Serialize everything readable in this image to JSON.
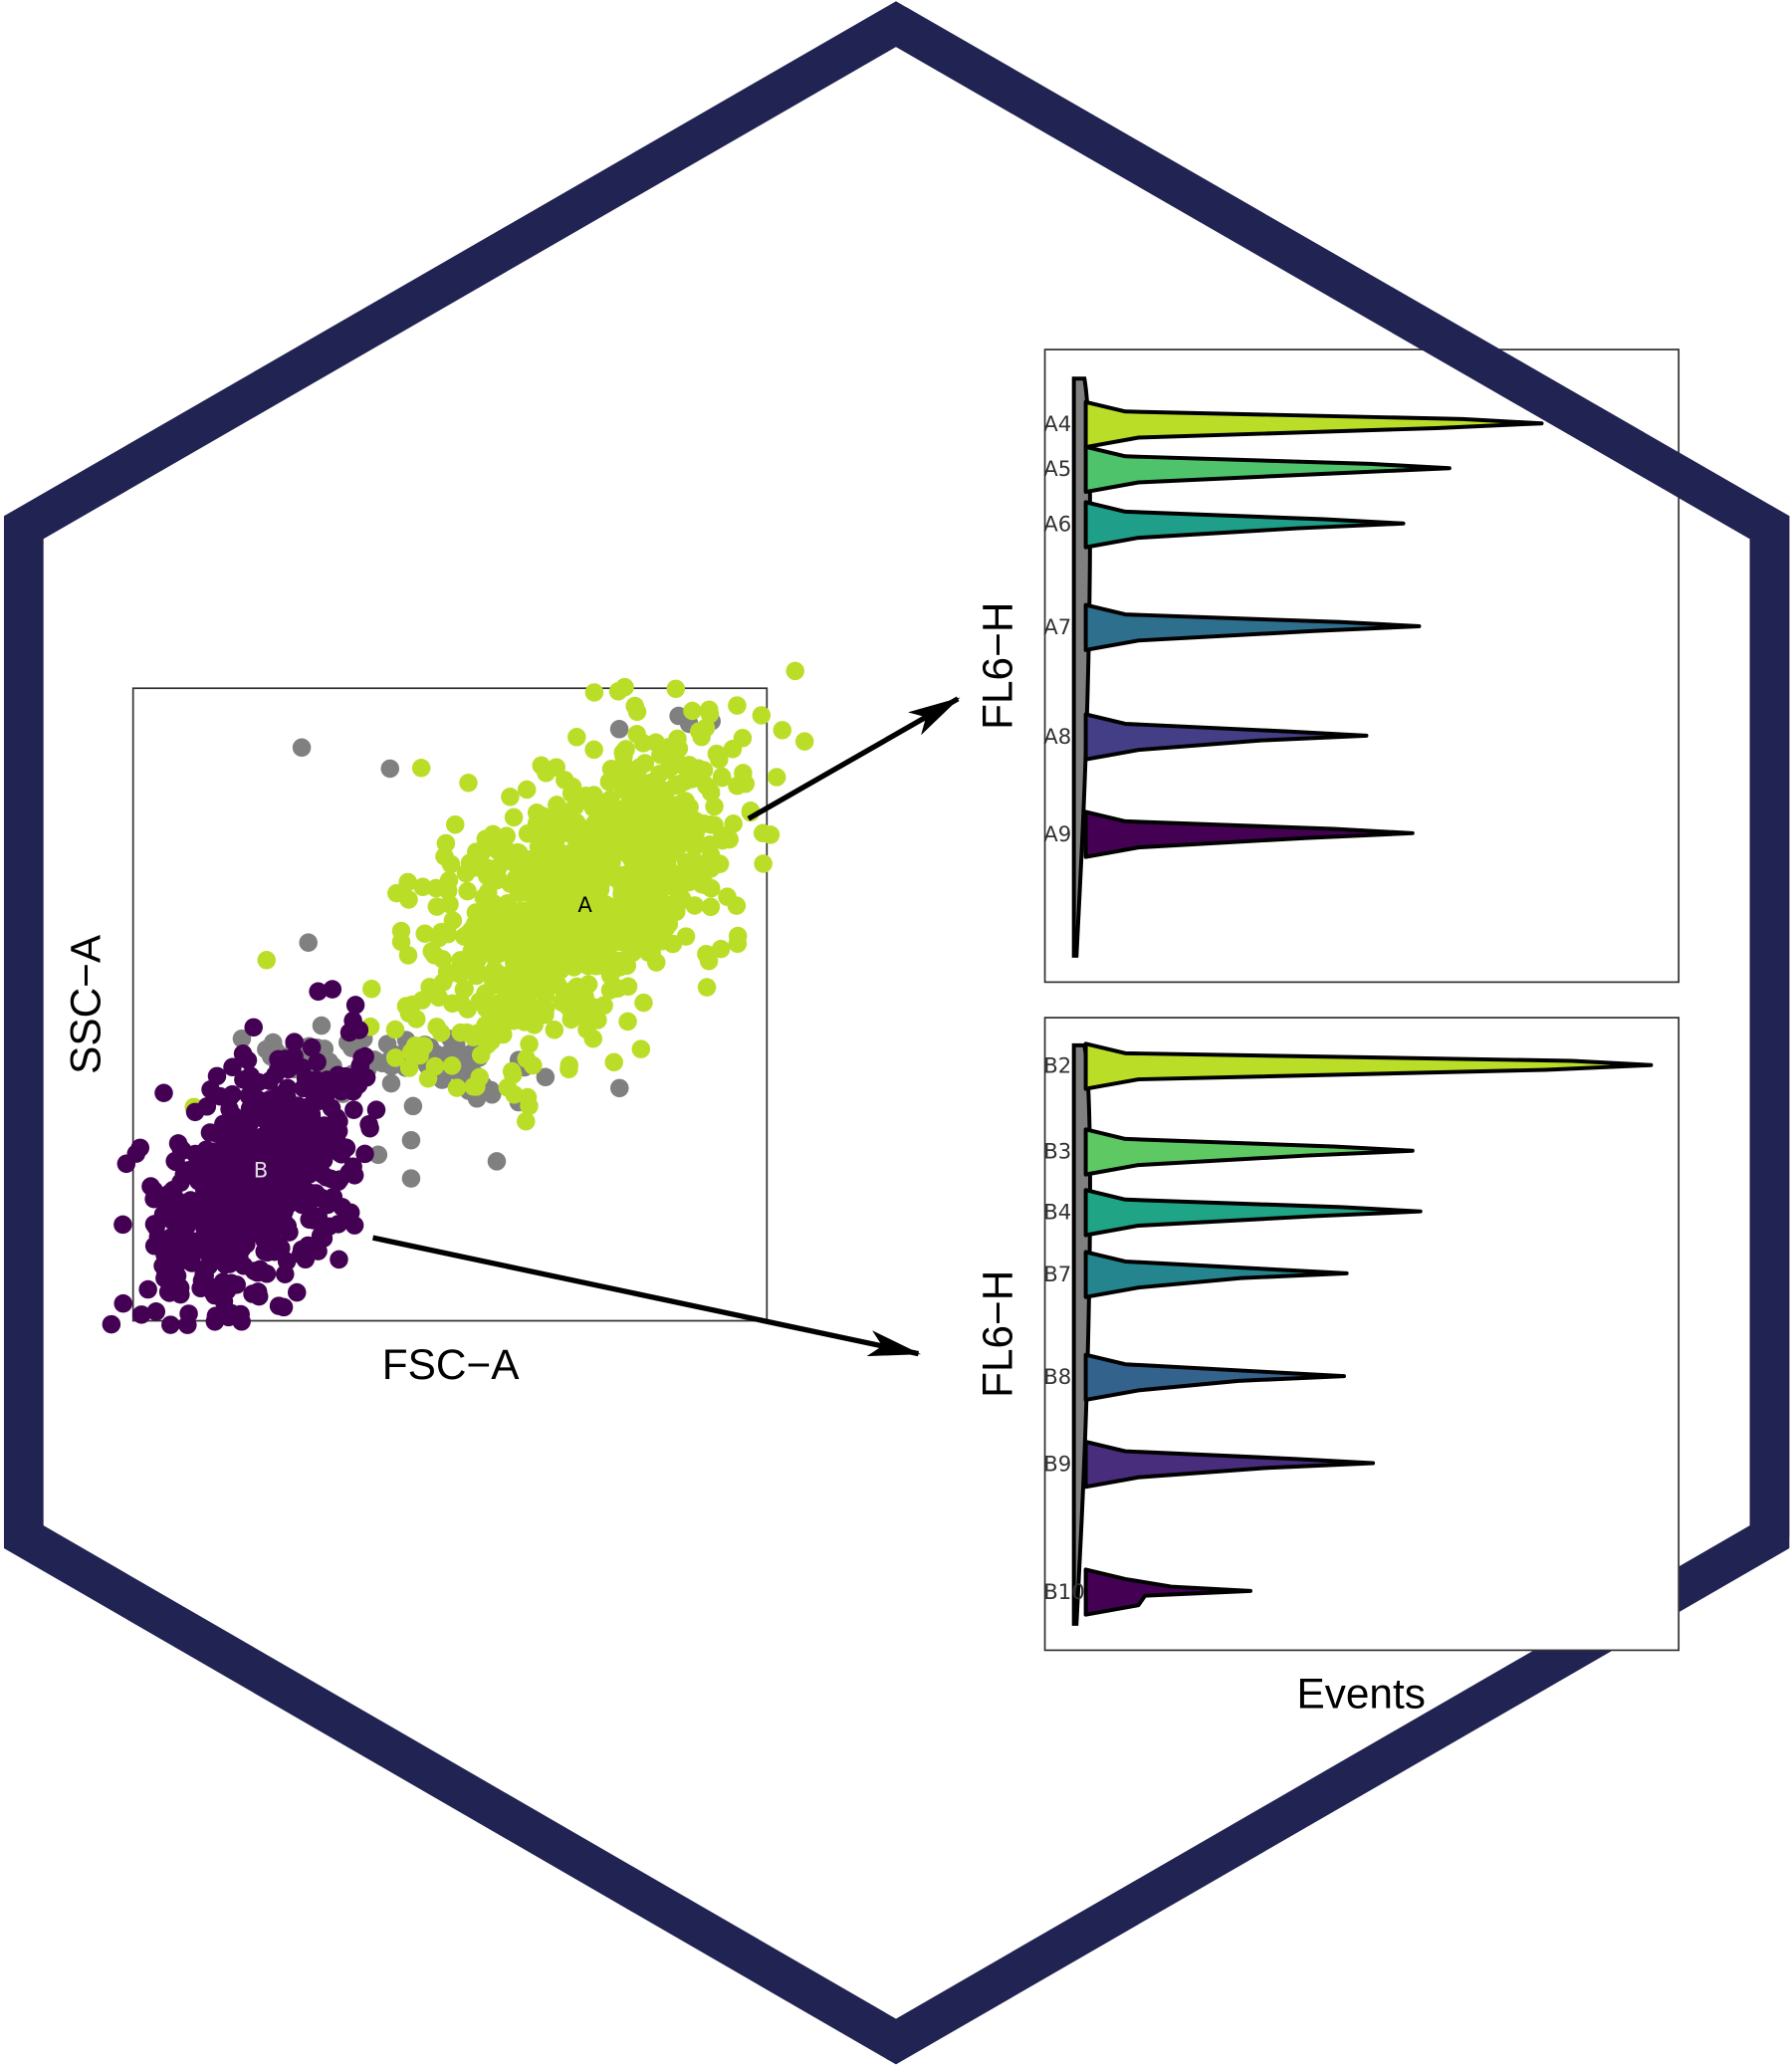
{
  "hex_color": "#212353",
  "scatter": {
    "xlabel": "FSC−A",
    "ylabel": "SSC−A",
    "gates": [
      {
        "label": "A",
        "color": "#bade28",
        "label_color": "#000000"
      },
      {
        "label": "B",
        "color": "#440154",
        "label_color": "#dddddd"
      }
    ],
    "ungated_color": "#808080"
  },
  "ridges_top": {
    "ylabel": "FL6−H",
    "samples": [
      {
        "label": "A4",
        "color": "#bade28"
      },
      {
        "label": "A5",
        "color": "#4ec36b"
      },
      {
        "label": "A6",
        "color": "#1f9e89"
      },
      {
        "label": "A7",
        "color": "#2e6f8e"
      },
      {
        "label": "A8",
        "color": "#433e85"
      },
      {
        "label": "A9",
        "color": "#440154"
      }
    ]
  },
  "ridges_bottom": {
    "ylabel": "FL6−H",
    "xlabel": "Events",
    "samples": [
      {
        "label": "B2",
        "color": "#bade28"
      },
      {
        "label": "B3",
        "color": "#5ec962"
      },
      {
        "label": "B4",
        "color": "#20a486"
      },
      {
        "label": "B7",
        "color": "#25858e"
      },
      {
        "label": "B8",
        "color": "#33638d"
      },
      {
        "label": "B9",
        "color": "#472d7b"
      },
      {
        "label": "B10",
        "color": "#440154"
      }
    ]
  }
}
